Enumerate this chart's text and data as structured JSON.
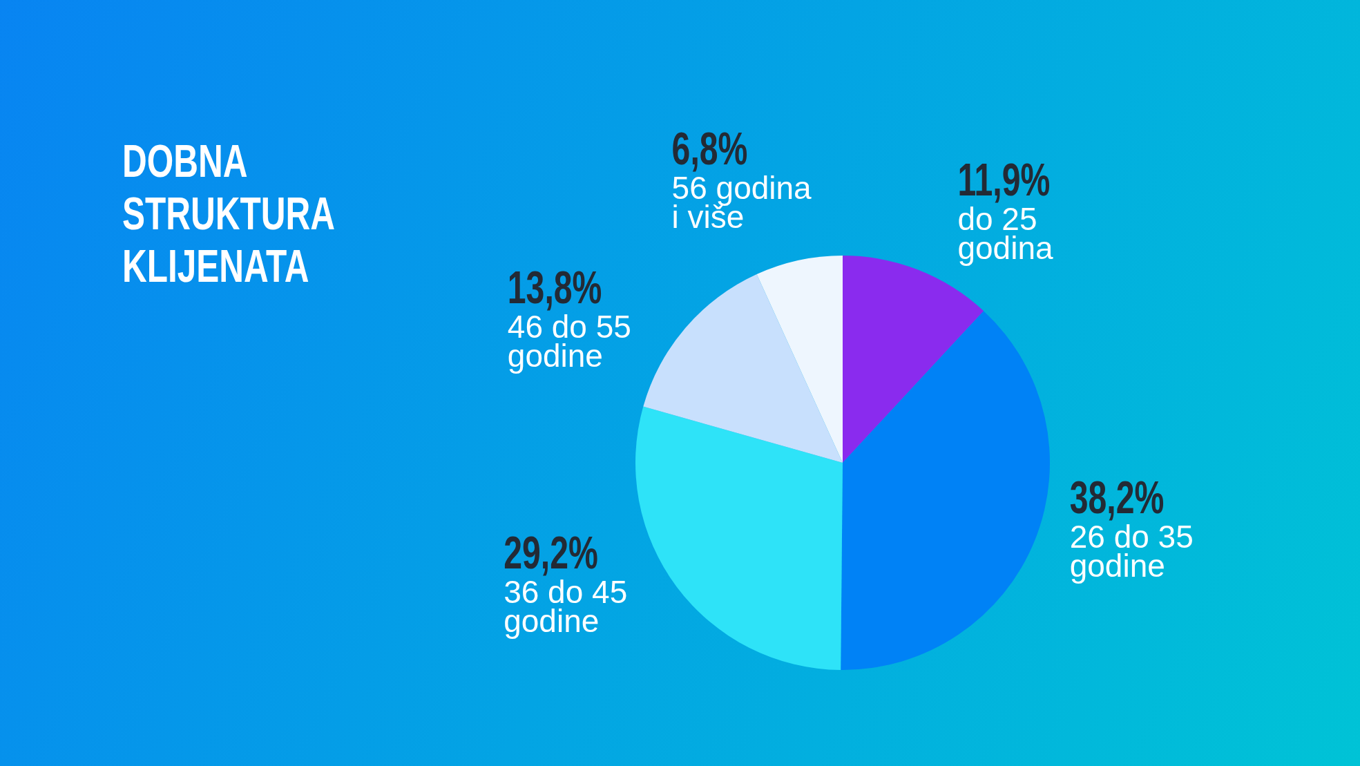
{
  "chart_data": {
    "type": "pie",
    "title": "DOBNA STRUKTURA KLIJENATA",
    "categories": [
      "do 25 godina",
      "26 do 35 godine",
      "36 do 45 godine",
      "46 do 55 godine",
      "56 godina i više"
    ],
    "values": [
      11.9,
      38.2,
      29.2,
      13.8,
      6.8
    ],
    "value_labels": [
      "11,9%",
      "38,2%",
      "29,2%",
      "13,8%",
      "6,8%"
    ],
    "colors": [
      "#8a2bee",
      "#0082f6",
      "#2ee3f8",
      "#c8e0fd",
      "#eef6fe"
    ]
  }
}
